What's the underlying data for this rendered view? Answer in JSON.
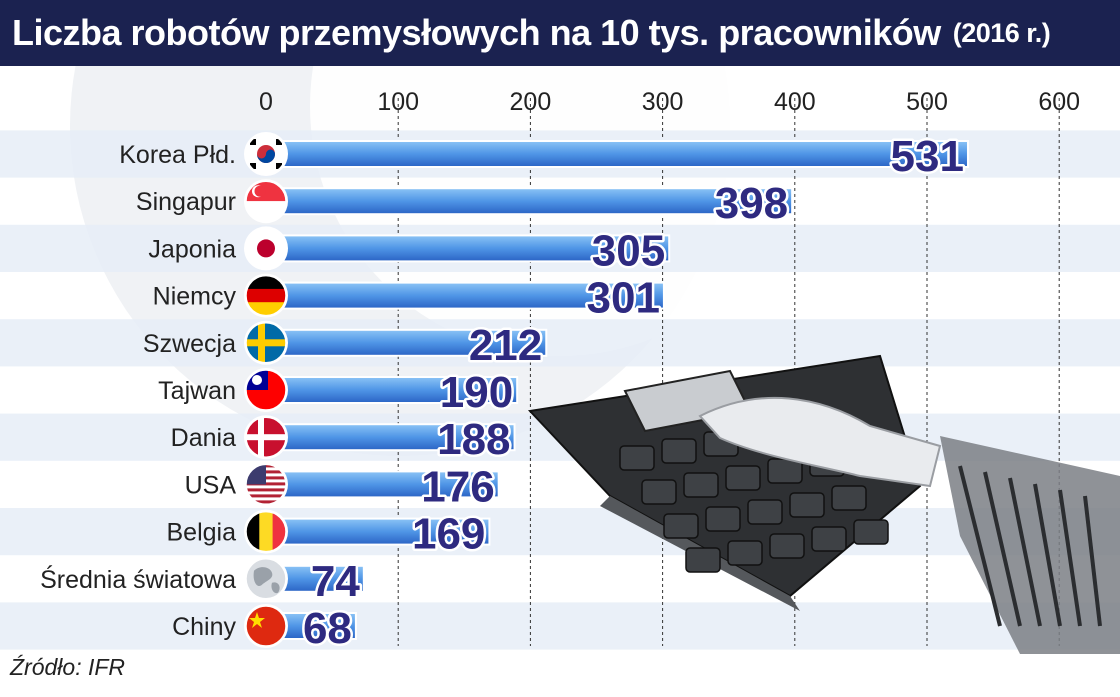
{
  "title": "Liczba robotów przemysłowych na 10 tys. pracowników",
  "subtitle": "(2016 r.)",
  "source": "Źródło: IFR",
  "colors": {
    "header": "#1b2250",
    "band": "#e6edf7",
    "bar_dark": "#2f6fd0",
    "bar_light": "#7fb6f2",
    "value_text": "#2e2a80"
  },
  "chart_data": {
    "type": "bar",
    "orientation": "horizontal",
    "title": "Liczba robotów przemysłowych na 10 tys. pracowników",
    "subtitle": "(2016 r.)",
    "xlim": [
      0,
      600
    ],
    "x_ticks": [
      0,
      100,
      200,
      300,
      400,
      500,
      600
    ],
    "grid": true,
    "categories": [
      "Korea Płd.",
      "Singapur",
      "Japonia",
      "Niemcy",
      "Szwecja",
      "Tajwan",
      "Dania",
      "USA",
      "Belgia",
      "Średnia światowa",
      "Chiny"
    ],
    "values": [
      531,
      398,
      305,
      301,
      212,
      190,
      188,
      176,
      169,
      74,
      68
    ],
    "flag_icons": [
      "south-korea-flag-icon",
      "singapore-flag-icon",
      "japan-flag-icon",
      "germany-flag-icon",
      "sweden-flag-icon",
      "taiwan-flag-icon",
      "denmark-flag-icon",
      "usa-flag-icon",
      "belgium-flag-icon",
      "globe-icon",
      "china-flag-icon"
    ]
  }
}
